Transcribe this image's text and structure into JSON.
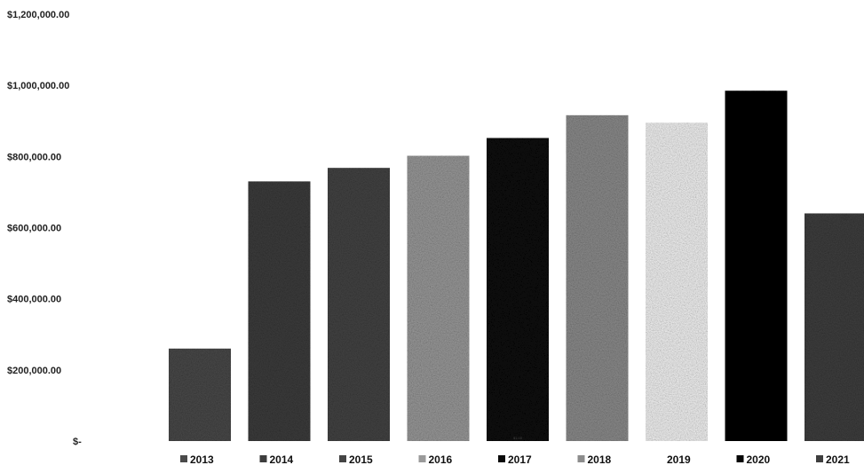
{
  "chart_data": {
    "type": "bar",
    "title": "",
    "xlabel": "",
    "ylabel": "",
    "categories": [
      "2013",
      "2014",
      "2015",
      "2016",
      "2017",
      "2018",
      "2019",
      "2020",
      "2021"
    ],
    "values": [
      260000,
      730000,
      768000,
      802000,
      852000,
      916000,
      895000,
      985000,
      640000
    ],
    "y_ticks": [
      "$-",
      "$200,000.00",
      "$400,000.00",
      "$600,000.00",
      "$800,000.00",
      "$1,000,000.00",
      "$1,200,000.00"
    ],
    "ylim": [
      0,
      1200000
    ],
    "grid": false,
    "legend_position": "bottom",
    "colors": [
      "#4a4a4a",
      "#3d3d3d",
      "#444444",
      "#9a9a9a",
      "#0a0a0a",
      "#8c8c8c",
      "#f4f4f4",
      "#050505",
      "#3f3f3f"
    ],
    "small_label_2017": "$1.00"
  }
}
